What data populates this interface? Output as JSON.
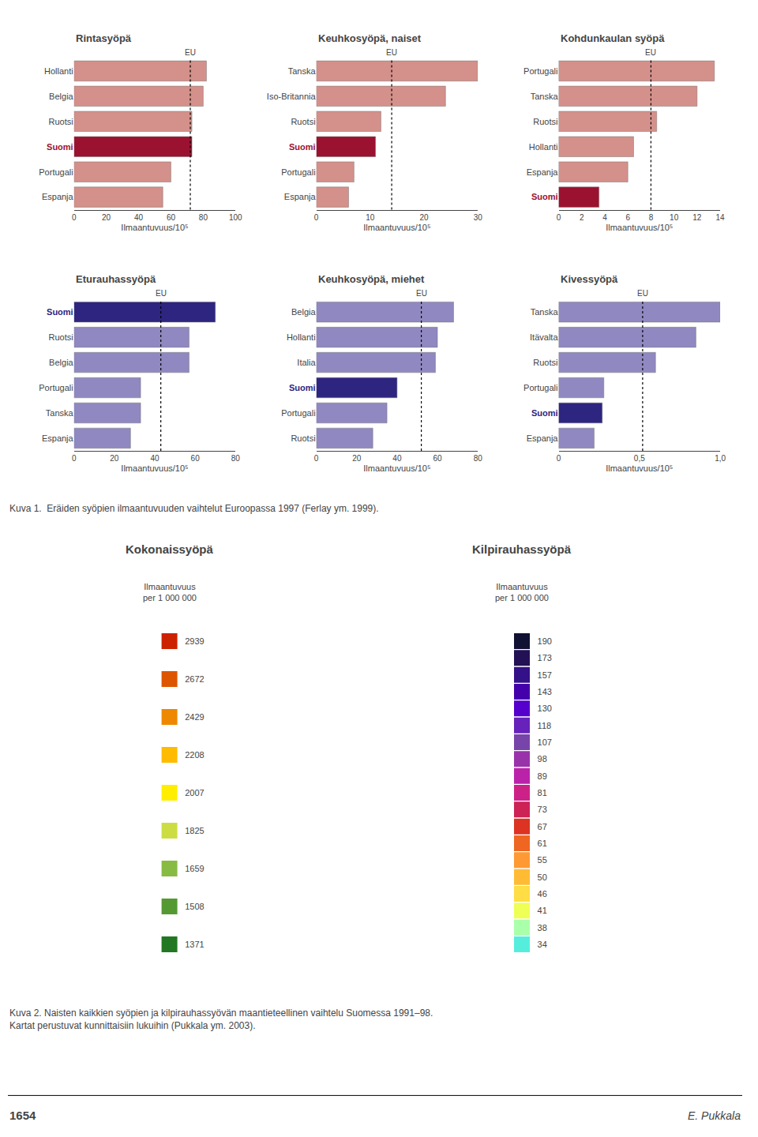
{
  "chart_data": [
    {
      "type": "bar",
      "orientation": "horizontal",
      "title": "Rintasyöpä",
      "categories": [
        "Hollanti",
        "Belgia",
        "Ruotsi",
        "Suomi",
        "Portugali",
        "Espanja"
      ],
      "values": [
        82,
        80,
        73,
        73,
        60,
        55
      ],
      "colors": [
        "#D4908A",
        "#D4908A",
        "#D4908A",
        "#9B1230",
        "#D4908A",
        "#D4908A"
      ],
      "reference_line": {
        "value": 72,
        "label": "EU"
      },
      "xlim": [
        0,
        100
      ],
      "xticks": [
        0,
        20,
        40,
        60,
        80,
        100
      ],
      "xlabel": "Ilmaantuvuus/10⁵",
      "grid": false
    },
    {
      "type": "bar",
      "orientation": "horizontal",
      "title": "Keuhkosyöpä, naiset",
      "categories": [
        "Tanska",
        "Iso-Britannia",
        "Ruotsi",
        "Suomi",
        "Portugali",
        "Espanja"
      ],
      "values": [
        30,
        24,
        12,
        11,
        7,
        6
      ],
      "colors": [
        "#D4908A",
        "#D4908A",
        "#D4908A",
        "#9B1230",
        "#D4908A",
        "#D4908A"
      ],
      "reference_line": {
        "value": 14,
        "label": "EU"
      },
      "xlim": [
        0,
        30
      ],
      "xticks": [
        0,
        10,
        20,
        30
      ],
      "xlabel": "Ilmaantuvuus/10⁵",
      "grid": false
    },
    {
      "type": "bar",
      "orientation": "horizontal",
      "title": "Kohdunkaulan syöpä",
      "categories": [
        "Portugali",
        "Tanska",
        "Ruotsi",
        "Hollanti",
        "Espanja",
        "Suomi"
      ],
      "values": [
        13.5,
        12.0,
        8.5,
        6.5,
        6.0,
        3.5
      ],
      "colors": [
        "#D4908A",
        "#D4908A",
        "#D4908A",
        "#D4908A",
        "#D4908A",
        "#9B1230"
      ],
      "reference_line": {
        "value": 8.0,
        "label": "EU"
      },
      "xlim": [
        0,
        14
      ],
      "xticks": [
        0,
        2,
        4,
        6,
        8,
        10,
        12,
        14
      ],
      "xlabel": "Ilmaantuvuus/10⁵",
      "grid": false
    },
    {
      "type": "bar",
      "orientation": "horizontal",
      "title": "Eturauhassyöpä",
      "categories": [
        "Suomi",
        "Ruotsi",
        "Belgia",
        "Portugali",
        "Tanska",
        "Espanja"
      ],
      "values": [
        70,
        57,
        57,
        33,
        33,
        28
      ],
      "colors": [
        "#2E2580",
        "#9088C0",
        "#9088C0",
        "#9088C0",
        "#9088C0",
        "#9088C0"
      ],
      "reference_line": {
        "value": 43,
        "label": "EU"
      },
      "xlim": [
        0,
        80
      ],
      "xticks": [
        0,
        20,
        40,
        60,
        80
      ],
      "xlabel": "Ilmaantuvuus/10⁵",
      "grid": false
    },
    {
      "type": "bar",
      "orientation": "horizontal",
      "title": "Keuhkosyöpä, miehet",
      "categories": [
        "Belgia",
        "Hollanti",
        "Italia",
        "Suomi",
        "Portugali",
        "Ruotsi"
      ],
      "values": [
        68,
        60,
        59,
        40,
        35,
        28
      ],
      "colors": [
        "#9088C0",
        "#9088C0",
        "#9088C0",
        "#2E2580",
        "#9088C0",
        "#9088C0"
      ],
      "reference_line": {
        "value": 52,
        "label": "EU"
      },
      "xlim": [
        0,
        80
      ],
      "xticks": [
        0,
        20,
        40,
        60,
        80
      ],
      "xlabel": "Ilmaantuvuus/10⁵",
      "grid": false
    },
    {
      "type": "bar",
      "orientation": "horizontal",
      "title": "Kivessyöpä",
      "categories": [
        "Tanska",
        "Itävalta",
        "Ruotsi",
        "Portugali",
        "Suomi",
        "Espanja"
      ],
      "values": [
        1.0,
        0.85,
        0.6,
        0.28,
        0.27,
        0.22
      ],
      "colors": [
        "#9088C0",
        "#9088C0",
        "#9088C0",
        "#9088C0",
        "#2E2580",
        "#9088C0"
      ],
      "reference_line": {
        "value": 0.52,
        "label": "EU"
      },
      "xlim": [
        0,
        1.0
      ],
      "xticks": [
        0,
        {
          "value": 0.5,
          "label": "0,5"
        },
        {
          "value": 1.0,
          "label": "1,0"
        }
      ],
      "xlabel": "Ilmaantuvuus/10⁵",
      "grid": false
    },
    {
      "type": "key",
      "title": "Kokonaissyöpä",
      "subtitle": "Ilmaantuvuus\nper 1 000 000",
      "categories": [
        "2939",
        "2672",
        "2429",
        "2208",
        "2007",
        "1825",
        "1659",
        "1508",
        "1371"
      ],
      "colors": [
        "#CC2200",
        "#DD5500",
        "#EE8800",
        "#FFBB00",
        "#FFEE00",
        "#CCDD44",
        "#88BB44",
        "#559933",
        "#227722"
      ],
      "tick_labels": "y",
      "grid": false
    },
    {
      "type": "key",
      "title": "Kilpirauhassyöpä",
      "subtitle": "Ilmaantuvuus\nper 1 000 000",
      "categories": [
        "190",
        "173",
        "157",
        "143",
        "130",
        "118",
        "107",
        "98",
        "89",
        "81",
        "73",
        "67",
        "61",
        "55",
        "50",
        "46",
        "41",
        "38",
        "34"
      ],
      "colors": [
        "#111133",
        "#221155",
        "#331188",
        "#4400AA",
        "#5500CC",
        "#6622BB",
        "#7744AA",
        "#9933AA",
        "#BB22AA",
        "#CC2288",
        "#CC2255",
        "#DD3322",
        "#EE6622",
        "#FF9933",
        "#FFBB33",
        "#FFDD44",
        "#EEFF55",
        "#AAFFAA",
        "#55EEDD"
      ],
      "tick_labels": "y",
      "grid": false
    }
  ],
  "annotations": [
    "Kuva 1.  Eräiden syöpien ilmaantuvuuden vaihtelut Euroopassa 1997 (Ferlay ym. 1999).",
    "Kuva 2. Naisten kaikkien syöpien ja kilpirauhassyövän maantieteellinen vaihtelu Suomessa 1991–98.\nKartat perustuvat kunnittaisiin lukuihin (Pukkala ym. 2003).",
    "1654",
    "E. Pukkala"
  ]
}
